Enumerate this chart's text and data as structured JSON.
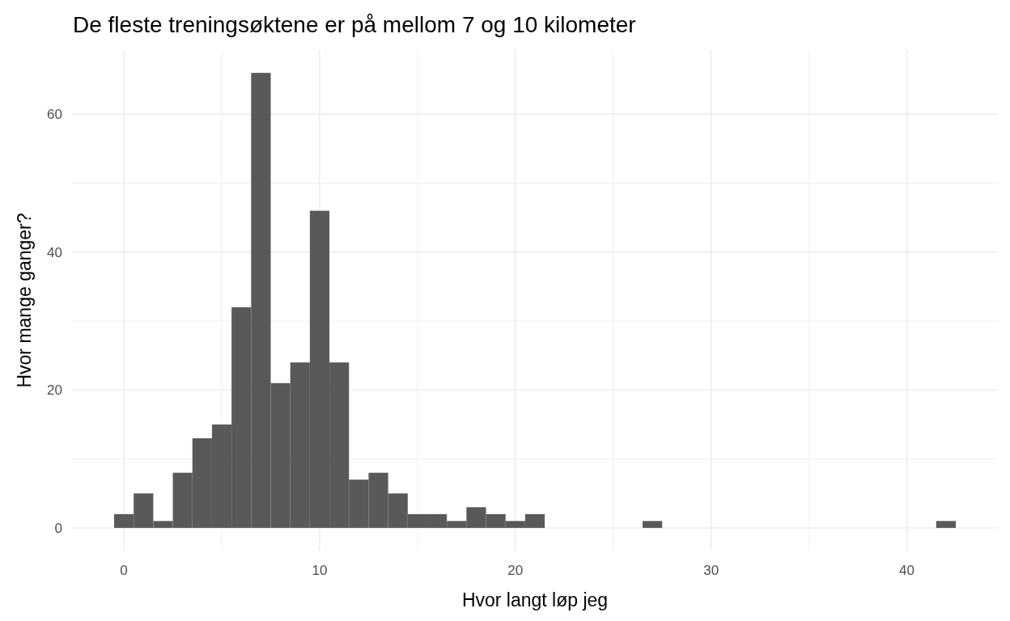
{
  "chart_data": {
    "type": "histogram",
    "title": "De fleste treningsøktene er på mellom 7 og 10 kilometer",
    "xlabel": "Hvor langt løp jeg",
    "ylabel": "Hvor mange ganger?",
    "bins": [
      -0.5,
      0.5,
      1.5,
      2.5,
      3.5,
      4.5,
      5.5,
      6.5,
      7.5,
      8.5,
      9.5,
      10.5,
      11.5,
      12.5,
      13.5,
      14.5,
      15.5,
      16.5,
      17.5,
      18.5,
      19.5,
      20.5,
      21.5,
      22.5,
      23.5,
      24.5,
      25.5,
      26.5,
      27.5,
      28.5,
      29.5,
      30.5,
      31.5,
      32.5,
      33.5,
      34.5,
      35.5,
      36.5,
      37.5,
      38.5,
      39.5,
      40.5,
      41.5,
      42.5
    ],
    "values": [
      2,
      5,
      1,
      8,
      13,
      15,
      32,
      66,
      21,
      24,
      46,
      24,
      7,
      8,
      5,
      2,
      2,
      1,
      3,
      2,
      1,
      2,
      0,
      0,
      0,
      0,
      0,
      1,
      0,
      0,
      0,
      0,
      0,
      0,
      0,
      0,
      0,
      0,
      0,
      0,
      0,
      0,
      1
    ],
    "color": "#595959",
    "xlim": [
      -2.65,
      44.65
    ],
    "xticks": [
      0,
      {
        "value": 5,
        "label": null
      },
      10,
      {
        "value": 15,
        "label": null
      },
      20,
      {
        "value": 25,
        "label": null
      },
      30,
      {
        "value": 35,
        "label": null
      },
      40
    ],
    "ylim": [
      -3.3,
      69.3
    ],
    "yticks": [
      0,
      {
        "value": 10,
        "label": null
      },
      20,
      {
        "value": 30,
        "label": null
      },
      40,
      {
        "value": 50,
        "label": null
      },
      60
    ],
    "grid": true
  }
}
